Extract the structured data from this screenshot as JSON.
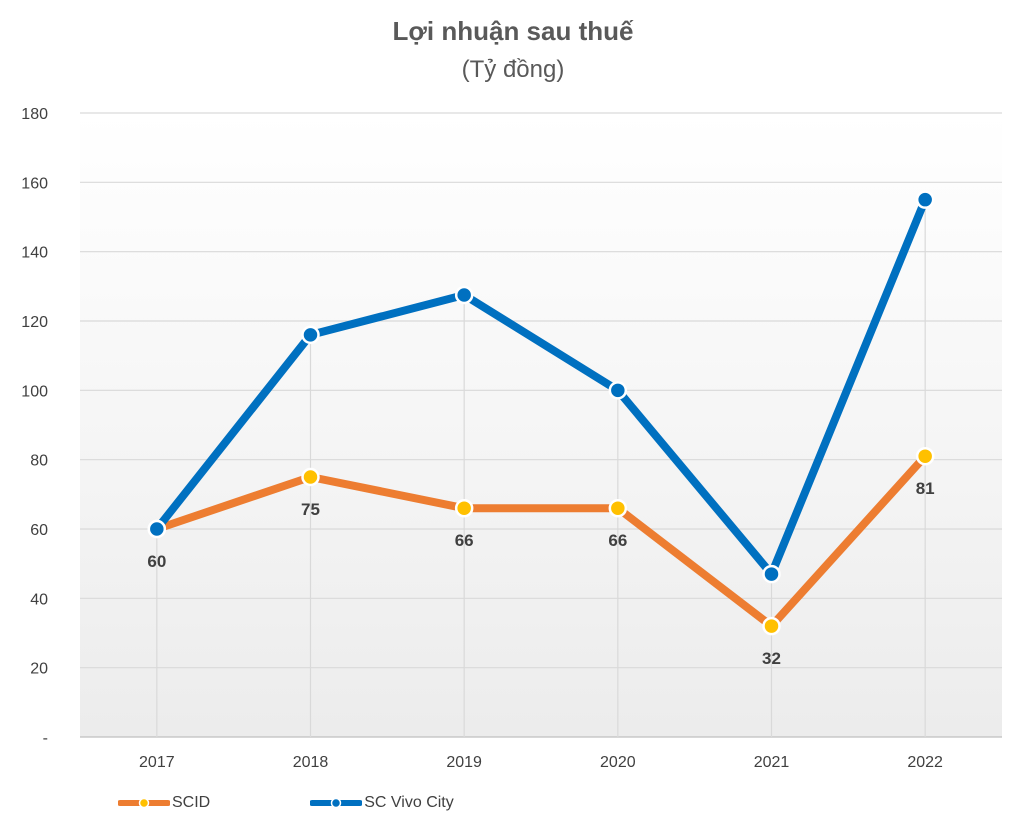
{
  "colors": {
    "scid_line": "#ED7D31",
    "scid_marker": "#FFC000",
    "vivo_line": "#0070C0",
    "vivo_marker": "#0070C0",
    "grid": "#D9D9D9"
  },
  "chart_data": {
    "type": "line",
    "title": "Lợi nhuận sau thuế",
    "subtitle": "(Tỷ đồng)",
    "xlabel": "",
    "ylabel": "",
    "categories": [
      "2017",
      "2018",
      "2019",
      "2020",
      "2021",
      "2022"
    ],
    "ylim": [
      0,
      180
    ],
    "yticks": [
      0,
      20,
      40,
      60,
      80,
      100,
      120,
      140,
      160,
      180
    ],
    "ytick_labels": [
      "-",
      "20",
      "40",
      "60",
      "80",
      "100",
      "120",
      "140",
      "160",
      "180"
    ],
    "grid": true,
    "legend_position": "bottom-left",
    "series": [
      {
        "name": "SCID",
        "values": [
          60,
          75,
          66,
          66,
          32,
          81
        ],
        "data_labels": [
          "60",
          "75",
          "66",
          "66",
          "32",
          "81"
        ]
      },
      {
        "name": "SC Vivo City",
        "values": [
          60,
          116,
          127.5,
          100,
          47,
          155
        ],
        "data_labels": []
      }
    ]
  }
}
